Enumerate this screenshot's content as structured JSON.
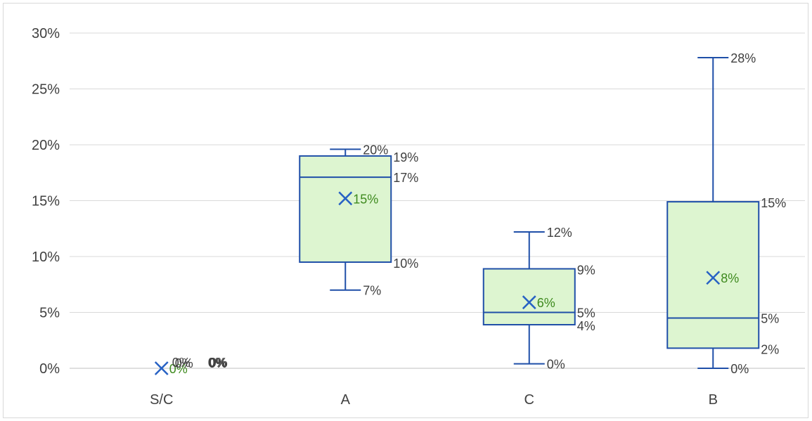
{
  "chart_data": {
    "type": "box",
    "title": "",
    "xlabel": "",
    "ylabel": "",
    "ylim": [
      0,
      0.3
    ],
    "y_ticks": [
      0,
      0.05,
      0.1,
      0.15,
      0.2,
      0.25,
      0.3
    ],
    "y_tick_labels": [
      "0%",
      "5%",
      "10%",
      "15%",
      "20%",
      "25%",
      "30%"
    ],
    "grid": true,
    "legend": "none",
    "categories": [
      "S/C",
      "A",
      "C",
      "B"
    ],
    "boxes": [
      {
        "category": "S/C",
        "min": 0,
        "q1": 0,
        "median": 0,
        "q3": 0,
        "max": 0,
        "mean": 0,
        "labels": {
          "min": "0%",
          "q1": "0%",
          "median": "0%",
          "q3": "0%",
          "max": "0%",
          "mean": "0%"
        }
      },
      {
        "category": "A",
        "min": 0.07,
        "q1": 0.095,
        "median": 0.171,
        "q3": 0.19,
        "max": 0.196,
        "mean": 0.152,
        "labels": {
          "min": "7%",
          "q1": "10%",
          "median": "17%",
          "q3": "19%",
          "max": "20%",
          "mean": "15%"
        }
      },
      {
        "category": "C",
        "min": 0.004,
        "q1": 0.039,
        "median": 0.05,
        "q3": 0.089,
        "max": 0.122,
        "mean": 0.059,
        "labels": {
          "min": "0%",
          "q1": "4%",
          "median": "5%",
          "q3": "9%",
          "max": "12%",
          "mean": "6%"
        }
      },
      {
        "category": "B",
        "min": 0.0,
        "q1": 0.018,
        "median": 0.045,
        "q3": 0.149,
        "max": 0.278,
        "mean": 0.081,
        "labels": {
          "min": "0%",
          "q1": "2%",
          "median": "5%",
          "q3": "15%",
          "max": "28%",
          "mean": "8%"
        }
      }
    ],
    "colors": {
      "box_fill": "#ddf5d0",
      "box_stroke": "#1f4fa8",
      "mean_marker": "#2862c4",
      "mean_label": "#3e8a1e",
      "grid": "#d9d9d9",
      "text": "#404040"
    }
  }
}
